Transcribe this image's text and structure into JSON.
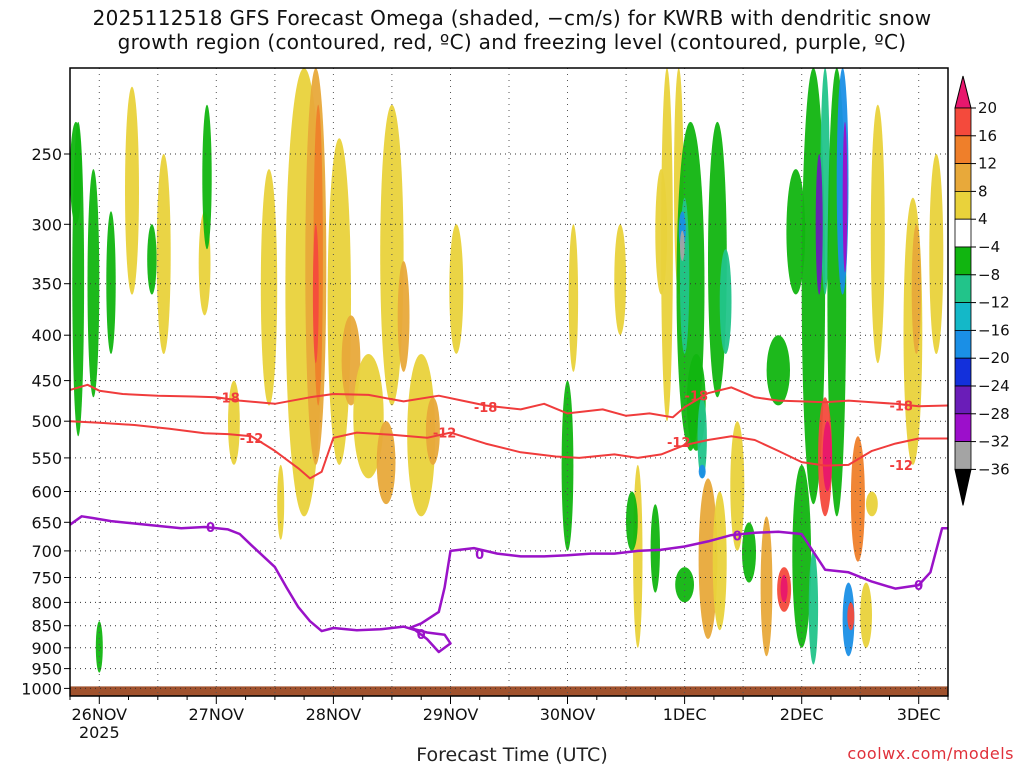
{
  "chart_data": {
    "type": "heatmap",
    "title_line1": "2025112518 GFS Forecast Omega (shaded, −cm/s) for KWRB with dendritic snow",
    "title_line2": "growth region (contoured, red, ºC) and freezing level (contoured, purple, ºC)",
    "xlabel": "Forecast Time (UTC)",
    "x_ticks": [
      "26NOV",
      "27NOV",
      "28NOV",
      "29NOV",
      "30NOV",
      "1DEC",
      "2DEC",
      "3DEC"
    ],
    "x_year": "2025",
    "x_range_days": [
      -0.25,
      7.25
    ],
    "y_ticks": [
      250,
      300,
      350,
      400,
      450,
      500,
      550,
      600,
      650,
      700,
      750,
      800,
      850,
      900,
      950,
      1000
    ],
    "y_range_hpa": [
      200,
      1020
    ],
    "colorbar": {
      "labels": [
        "20",
        "16",
        "12",
        "8",
        "4",
        "−4",
        "−8",
        "−12",
        "−16",
        "−20",
        "−24",
        "−28",
        "−32",
        "−36"
      ],
      "colors": [
        "#e8176d",
        "#f44a3c",
        "#ef7f2a",
        "#e8a93a",
        "#e9d23b",
        "#ffffff",
        "#11b510",
        "#22c48a",
        "#14b8c8",
        "#1a8fe6",
        "#1330db",
        "#6a1db8",
        "#9c0fcb",
        "#a4a4a4",
        "#000000"
      ]
    },
    "contours": {
      "dgz_red": [
        {
          "label": "-18",
          "x": [
            -0.25,
            -0.1,
            0.0,
            0.2,
            0.5,
            0.8,
            1.0,
            1.2,
            1.5,
            1.8,
            2.0,
            2.3,
            2.6,
            2.9,
            3.1,
            3.3,
            3.6,
            3.8,
            4.0,
            4.3,
            4.5,
            4.7,
            4.9,
            5.0,
            5.2,
            5.4,
            5.6,
            5.8,
            6.0,
            6.2,
            6.4,
            6.6,
            6.8,
            7.0,
            7.25
          ],
          "p": [
            461,
            455,
            462,
            466,
            468,
            469,
            470,
            474,
            478,
            470,
            466,
            467,
            475,
            468,
            474,
            480,
            485,
            478,
            490,
            485,
            493,
            490,
            495,
            482,
            465,
            458,
            470,
            474,
            475,
            476,
            474,
            476,
            478,
            481,
            480
          ]
        },
        {
          "label": "-12",
          "x": [
            -0.25,
            0.0,
            0.3,
            0.6,
            0.9,
            1.1,
            1.3,
            1.5,
            1.7,
            1.8,
            1.9,
            2.0,
            2.2,
            2.5,
            2.8,
            3.0,
            3.3,
            3.6,
            3.9,
            4.1,
            4.4,
            4.6,
            4.8,
            5.0,
            5.2,
            5.4,
            5.6,
            5.8,
            6.0,
            6.2,
            6.4,
            6.6,
            6.8,
            7.0,
            7.25
          ],
          "p": [
            500,
            502,
            505,
            510,
            516,
            517,
            520,
            540,
            565,
            580,
            570,
            522,
            515,
            518,
            522,
            515,
            530,
            542,
            548,
            550,
            545,
            550,
            545,
            532,
            525,
            520,
            525,
            540,
            556,
            561,
            560,
            540,
            530,
            523,
            523
          ]
        }
      ],
      "freezing_purple": [
        {
          "label": "0",
          "x": [
            -0.25,
            -0.15,
            -0.05,
            0.1,
            0.3,
            0.5,
            0.7,
            0.9,
            1.1,
            1.2,
            1.3,
            1.5,
            1.6,
            1.7,
            1.8,
            1.9,
            2.0,
            2.2,
            2.4,
            2.6,
            2.7,
            2.8,
            2.9,
            3.0,
            2.95,
            2.8,
            2.65,
            2.75,
            2.9,
            2.95,
            3.0,
            3.2,
            3.4,
            3.6,
            3.8,
            4.0,
            4.2,
            4.4,
            4.6,
            4.8,
            5.0,
            5.2,
            5.4,
            5.6,
            5.8,
            6.0,
            6.2,
            6.4,
            6.6,
            6.8,
            7.0,
            7.1,
            7.2,
            7.25
          ],
          "p": [
            654,
            640,
            643,
            648,
            652,
            656,
            660,
            658,
            662,
            670,
            690,
            730,
            770,
            810,
            840,
            862,
            855,
            860,
            858,
            852,
            860,
            880,
            910,
            890,
            870,
            865,
            855,
            845,
            820,
            770,
            700,
            695,
            705,
            710,
            710,
            708,
            705,
            705,
            700,
            698,
            692,
            683,
            672,
            668,
            666,
            670,
            735,
            740,
            758,
            772,
            765,
            740,
            660,
            660
          ]
        }
      ]
    }
  }
}
